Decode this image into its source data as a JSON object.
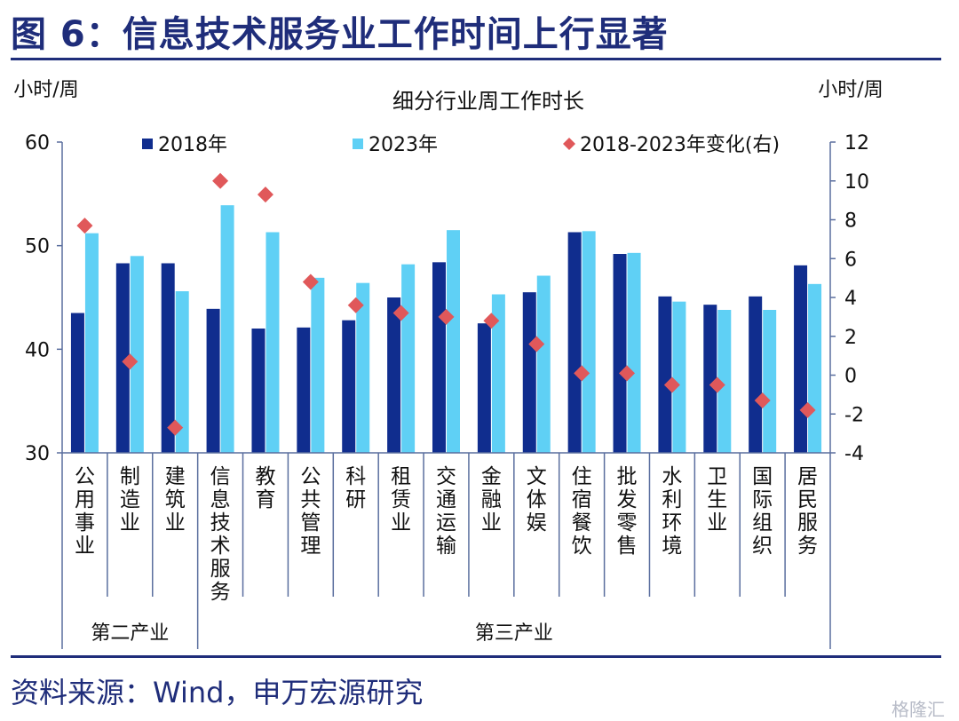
{
  "figure": {
    "title": "图 6：信息技术服务业工作时间上行显著",
    "source": "资料来源：Wind，申万宏源研究",
    "watermark": "格隆汇"
  },
  "colors": {
    "title": "#1f2d7a",
    "series_2018": "#102d8e",
    "series_2023": "#5fd0f5",
    "series_change": "#e0585a",
    "axis": "#5a6e9e"
  },
  "chart_data": {
    "type": "bar",
    "title": "细分行业周工作时长",
    "ylabel_left": "小时/周",
    "ylabel_right": "小时/周",
    "ylim_left": [
      30,
      60
    ],
    "yticks_left": [
      30,
      40,
      50,
      60
    ],
    "ylim_right": [
      -4,
      12
    ],
    "yticks_right": [
      -4,
      -2,
      0,
      2,
      4,
      6,
      8,
      10,
      12
    ],
    "legend_placement": "top",
    "grid": false,
    "categories": [
      "公用事业",
      "制造业",
      "建筑业",
      "信息技术服务",
      "教育",
      "公共管理",
      "科研",
      "租赁业",
      "交通运输",
      "金融业",
      "文体娱",
      "住宿餐饮",
      "批发零售",
      "水利环境",
      "卫生业",
      "国际组织",
      "居民服务"
    ],
    "groups": [
      {
        "name": "第二产业",
        "start": 0,
        "end": 2
      },
      {
        "name": "第三产业",
        "start": 3,
        "end": 16
      }
    ],
    "series": [
      {
        "name": "2018年",
        "kind": "bar",
        "axis": "left",
        "values": [
          43.5,
          48.3,
          48.3,
          43.9,
          42.0,
          42.1,
          42.8,
          45.0,
          48.4,
          42.5,
          45.5,
          51.3,
          49.2,
          45.1,
          44.3,
          45.1,
          48.1
        ]
      },
      {
        "name": "2023年",
        "kind": "bar",
        "axis": "left",
        "values": [
          51.2,
          49.0,
          45.6,
          53.9,
          51.3,
          46.9,
          46.4,
          48.2,
          51.5,
          45.3,
          47.1,
          51.4,
          49.3,
          44.6,
          43.8,
          43.8,
          46.3
        ]
      },
      {
        "name": "2018-2023年变化(右)",
        "kind": "scatter",
        "axis": "right",
        "values": [
          7.7,
          0.7,
          -2.7,
          10.0,
          9.3,
          4.8,
          3.6,
          3.2,
          3.0,
          2.8,
          1.6,
          0.1,
          0.1,
          -0.5,
          -0.5,
          -1.3,
          -1.8
        ]
      }
    ]
  }
}
